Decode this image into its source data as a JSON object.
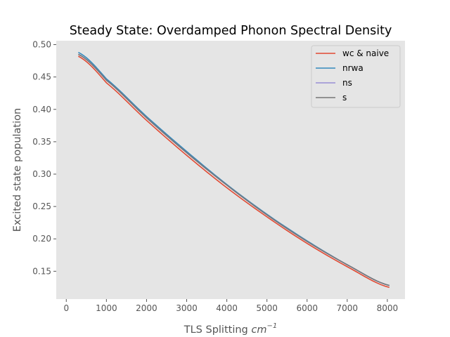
{
  "chart_data": {
    "type": "line",
    "title": "Steady State: Overdamped Phonon Spectral Density",
    "xlabel": "TLS Splitting ",
    "xlabel_unit": "cm",
    "xlabel_unit_exp": "−1",
    "ylabel": "Excited state population",
    "xlim": [
      -250,
      8440
    ],
    "ylim": [
      0.107,
      0.506
    ],
    "xticks": [
      0,
      1000,
      2000,
      3000,
      4000,
      5000,
      6000,
      7000,
      8000
    ],
    "yticks": [
      0.15,
      0.2,
      0.25,
      0.3,
      0.35,
      0.4,
      0.45,
      0.5
    ],
    "ytick_labels": [
      "0.15",
      "0.20",
      "0.25",
      "0.30",
      "0.35",
      "0.40",
      "0.45",
      "0.50"
    ],
    "grid": false,
    "legend_position": "top-right",
    "x": [
      300,
      1000,
      2000,
      3000,
      4000,
      5000,
      6000,
      7000,
      8050
    ],
    "series": [
      {
        "name": "wc & naive",
        "color": "#E24A33",
        "values": [
          0.482,
          0.441,
          0.383,
          0.329,
          0.279,
          0.234,
          0.193,
          0.157,
          0.125
        ]
      },
      {
        "name": "nrwa",
        "color": "#348ABD",
        "values": [
          0.488,
          0.447,
          0.389,
          0.335,
          0.284,
          0.238,
          0.197,
          0.16,
          0.128
        ]
      },
      {
        "name": "ns",
        "color": "#988ED5",
        "values": [
          0.485,
          0.445,
          0.387,
          0.333,
          0.283,
          0.237,
          0.196,
          0.16,
          0.128
        ]
      },
      {
        "name": "s",
        "color": "#777777",
        "values": [
          0.485,
          0.445,
          0.387,
          0.333,
          0.283,
          0.237,
          0.196,
          0.16,
          0.128
        ]
      }
    ]
  },
  "colors": {
    "plot_background": "#E5E5E5",
    "tick_color": "#555555"
  }
}
